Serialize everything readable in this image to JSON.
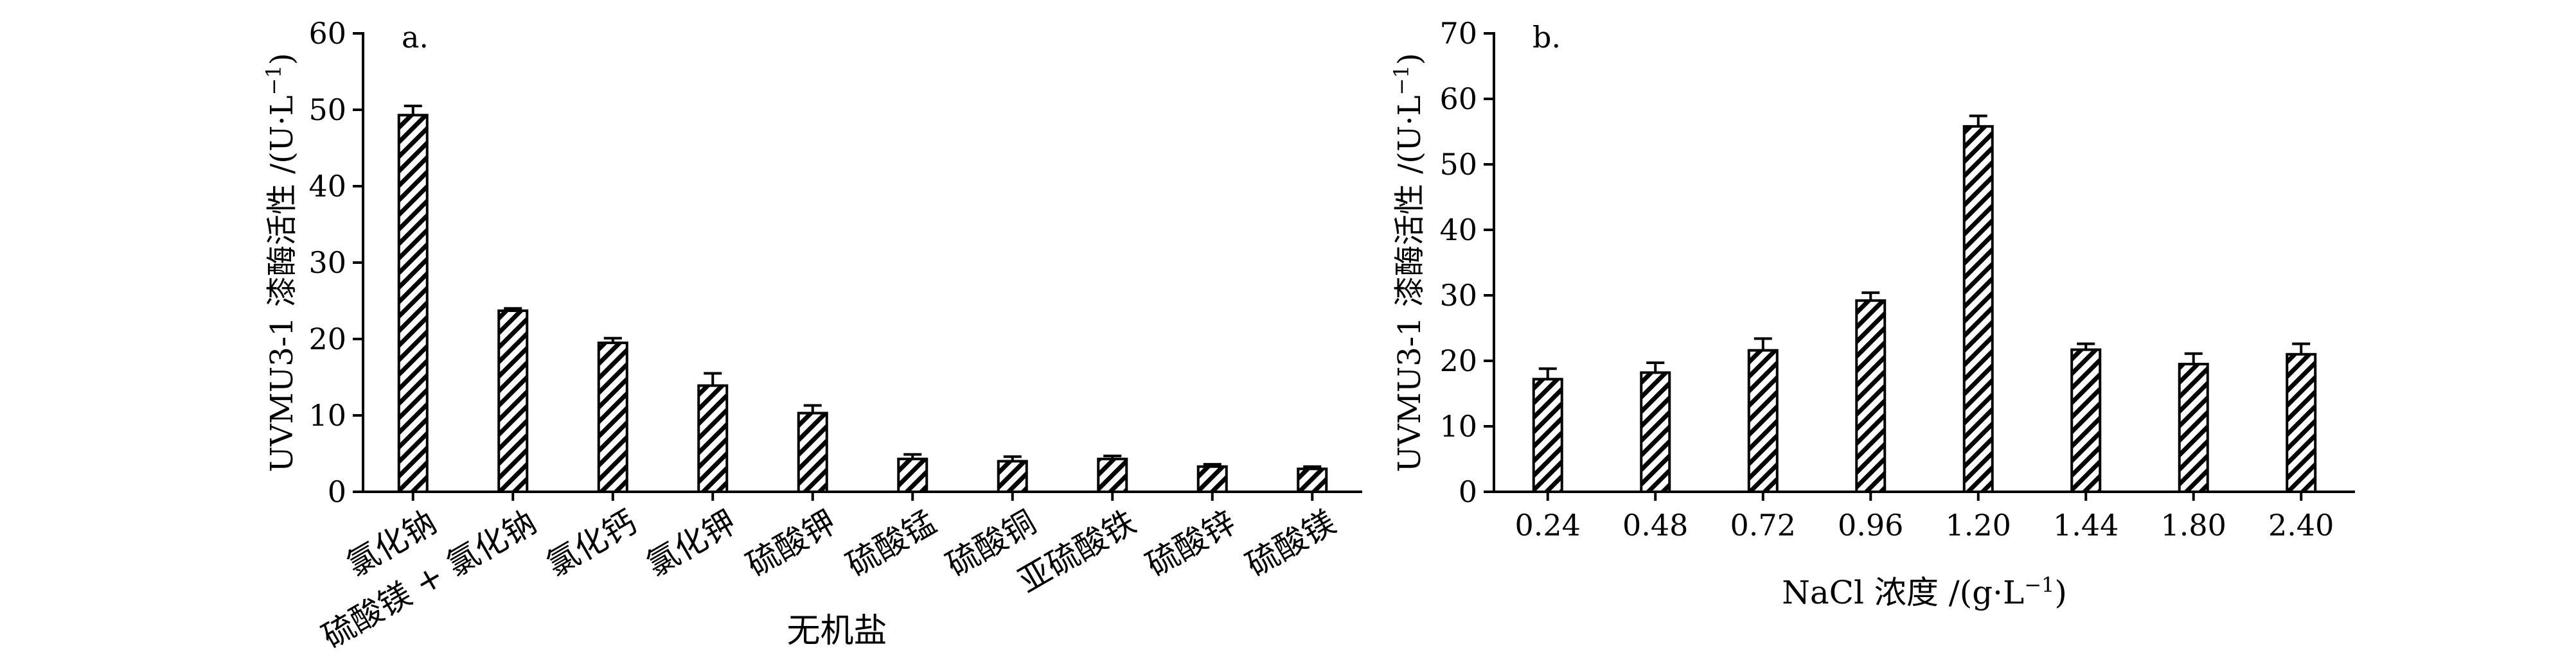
{
  "chart_data": [
    {
      "type": "bar",
      "panel_label": "a.",
      "ylabel": "UVMU3-1 漆酶活性 /(U·L",
      "ylabel_sup": "−1",
      "ylabel_close": ")",
      "xlabel": "无机盐",
      "ylim": [
        0,
        60
      ],
      "yticks": [
        0,
        10,
        20,
        30,
        40,
        50,
        60
      ],
      "categories": [
        "氯化钠",
        "硫酸镁 + 氯化钠",
        "氯化钙",
        "氯化钾",
        "硫酸钾",
        "硫酸锰",
        "硫酸铜",
        "亚硫酸铁",
        "硫酸锌",
        "硫酸镁"
      ],
      "values": [
        49.3,
        23.7,
        19.5,
        13.9,
        10.3,
        4.3,
        4.0,
        4.3,
        3.3,
        3.0
      ],
      "errors": [
        1.2,
        0.3,
        0.6,
        1.6,
        1.0,
        0.6,
        0.6,
        0.4,
        0.3,
        0.3
      ],
      "grid": false
    },
    {
      "type": "bar",
      "panel_label": "b.",
      "ylabel": "UVMU3-1 漆酶活性 /(U·L",
      "ylabel_sup": "−1",
      "ylabel_close": ")",
      "xlabel": "NaCl 浓度 /(g·L",
      "xlabel_sup": "−1",
      "xlabel_close": ")",
      "ylim": [
        0,
        70
      ],
      "yticks": [
        0,
        10,
        20,
        30,
        40,
        50,
        60,
        70
      ],
      "categories": [
        "0.24",
        "0.48",
        "0.72",
        "0.96",
        "1.20",
        "1.44",
        "1.80",
        "2.40"
      ],
      "values": [
        17.2,
        18.2,
        21.6,
        29.2,
        55.8,
        21.7,
        19.5,
        21.0
      ],
      "errors": [
        1.6,
        1.5,
        1.8,
        1.2,
        1.6,
        0.9,
        1.6,
        1.6
      ],
      "grid": false
    }
  ]
}
